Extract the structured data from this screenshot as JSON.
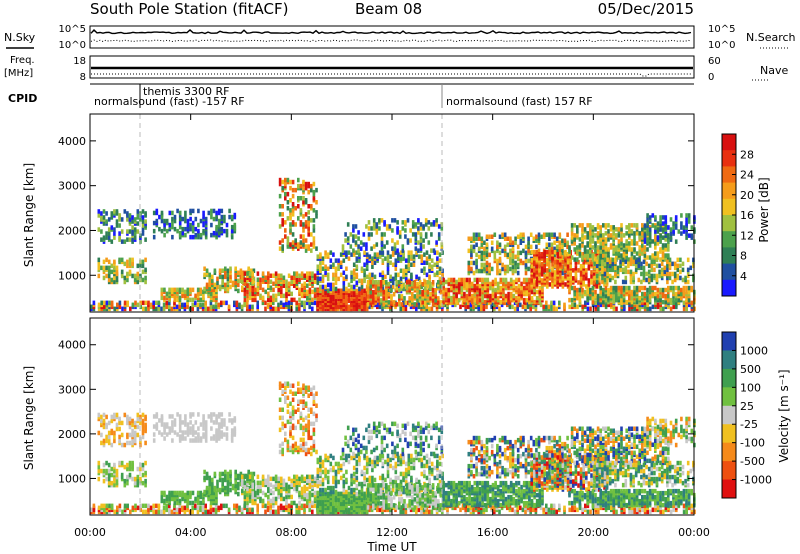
{
  "header": {
    "title": "South Pole Station (fitACF)",
    "beam": "Beam 08",
    "date": "05/Dec/2015"
  },
  "top_panels": {
    "nsky_label": "N.Sky",
    "nsearch_label": "N.Search",
    "noise_ticks": [
      "10^5",
      "10^0"
    ],
    "freq_label": "Freq.",
    "freq_unit": "[MHz]",
    "freq_ticks": [
      "18",
      "8"
    ],
    "nave_label": "Nave",
    "nave_ticks": [
      "60",
      "0"
    ],
    "cpid_label": "CPID",
    "cpid_segments": [
      {
        "label": "normalsound (fast) -157 RF",
        "start": "00:00",
        "end": "14:00"
      },
      {
        "label": "themis 3300 RF",
        "start": "02:00",
        "end": "02:00"
      },
      {
        "label": "normalsound (fast) 157 RF",
        "start": "14:00",
        "end": "24:00"
      }
    ]
  },
  "chart_data": [
    {
      "type": "heatmap",
      "name": "power",
      "ylabel": "Slant Range [km]",
      "y_ticks": [
        "1000",
        "2000",
        "3000",
        "4000"
      ],
      "ylim": [
        180,
        4600
      ],
      "xlim": [
        "00:00",
        "24:00"
      ],
      "colorbar_label": "Power [dB]",
      "colorbar_ticks": [
        "4",
        "8",
        "12",
        "16",
        "20",
        "24",
        "28"
      ],
      "colorbar_colors": [
        "#1a1aff",
        "#2050a0",
        "#2f7f55",
        "#4ca14c",
        "#a0c040",
        "#f0c020",
        "#f59c1a",
        "#ef6a12",
        "#e83010",
        "#d81010"
      ]
    },
    {
      "type": "heatmap",
      "name": "velocity",
      "ylabel": "Slant Range [km]",
      "y_ticks": [
        "1000",
        "2000",
        "3000",
        "4000"
      ],
      "ylim": [
        180,
        4600
      ],
      "xlabel": "Time UT",
      "x_ticks": [
        "00:00",
        "04:00",
        "08:00",
        "12:00",
        "16:00",
        "20:00",
        "00:00"
      ],
      "colorbar_label": "Velocity [m s⁻¹]",
      "colorbar_ticks": [
        "1000",
        "500",
        "100",
        "25",
        "-25",
        "-100",
        "-500",
        "-1000"
      ],
      "colorbar_colors": [
        "#2040b0",
        "#2f7f80",
        "#3f9f4f",
        "#70c040",
        "#c8c8c8",
        "#f0c020",
        "#f58a1a",
        "#ee5010",
        "#e01010"
      ]
    }
  ]
}
